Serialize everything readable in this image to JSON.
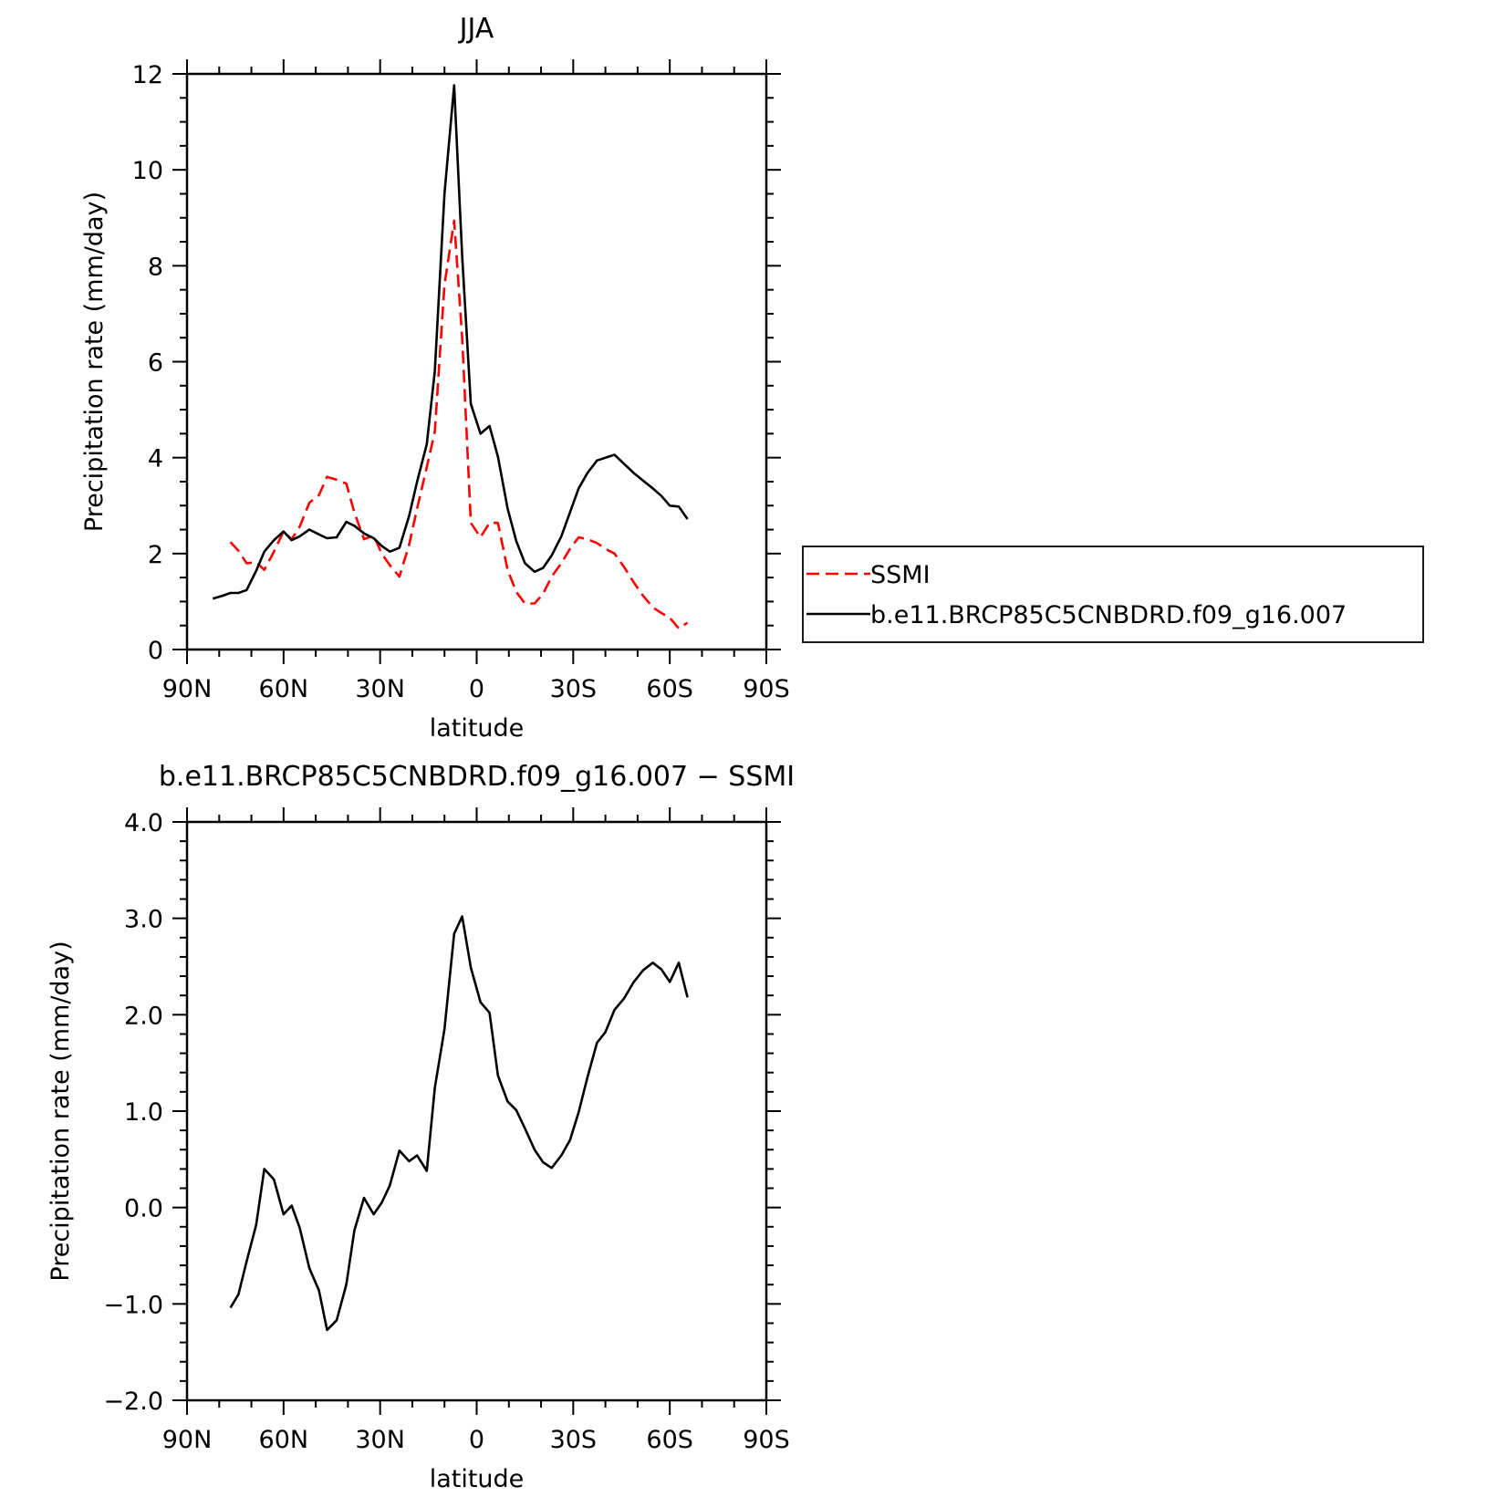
{
  "chart_data": [
    {
      "type": "line",
      "title": "JJA",
      "xlabel": "latitude",
      "ylabel": "Precipitation rate (mm/day)",
      "xlim": [
        90,
        -90
      ],
      "ylim": [
        0,
        12
      ],
      "xticks": [
        90,
        60,
        30,
        0,
        -30,
        -60,
        -90
      ],
      "xtick_labels": [
        "90N",
        "60N",
        "30N",
        "0",
        "30S",
        "60S",
        "90S"
      ],
      "yticks": [
        0,
        2,
        4,
        6,
        8,
        10,
        12
      ],
      "ytick_labels": [
        "0",
        "2",
        "4",
        "6",
        "8",
        "10",
        "12"
      ],
      "grid": false,
      "legend_placement": "right, outside",
      "series": [
        {
          "name": "SSMI",
          "color": "#ff0000",
          "style": "dashed",
          "x": [
            76.5,
            74,
            71.5,
            68.5,
            66,
            63,
            60,
            57.5,
            55,
            52,
            49,
            46.5,
            43.5,
            40.5,
            38,
            35,
            32,
            29.5,
            27,
            24,
            21,
            18.5,
            15.5,
            13,
            10,
            7,
            4.5,
            1.8,
            -1.2,
            -4,
            -6.6,
            -9.6,
            -12.3,
            -15,
            -18,
            -20.6,
            -23.3,
            -26.3,
            -29,
            -31.7,
            -34.4,
            -37.4,
            -40,
            -42.8,
            -45.8,
            -48.8,
            -51.7,
            -54.7,
            -57.4,
            -60,
            -62.8,
            -65.5
          ],
          "y": [
            2.24,
            2.06,
            1.8,
            1.82,
            1.66,
            2.04,
            2.46,
            2.3,
            2.56,
            3.06,
            3.22,
            3.6,
            3.54,
            3.46,
            2.86,
            2.3,
            2.38,
            2.0,
            1.76,
            1.52,
            2.18,
            2.94,
            3.8,
            4.54,
            7.6,
            8.94,
            6.5,
            2.64,
            2.34,
            2.64,
            2.64,
            1.66,
            1.2,
            0.96,
            0.96,
            1.16,
            1.52,
            1.8,
            2.1,
            2.34,
            2.3,
            2.22,
            2.1,
            2.0,
            1.72,
            1.4,
            1.12,
            0.88,
            0.76,
            0.66,
            0.44,
            0.56
          ]
        },
        {
          "name": "b.e11.BRCP85C5CNBDRD.f09_g16.007",
          "color": "#000000",
          "style": "solid",
          "x": [
            82,
            79,
            76.5,
            74,
            71.5,
            68.5,
            66,
            63,
            60,
            57.5,
            55,
            52,
            49,
            46.5,
            43.5,
            40.5,
            38,
            35,
            32,
            29.5,
            27,
            24,
            21,
            18.5,
            15.5,
            13,
            10,
            7,
            4.5,
            1.8,
            -1.2,
            -4,
            -6.6,
            -9.6,
            -12.3,
            -15,
            -18,
            -20.6,
            -23.3,
            -26.3,
            -29,
            -31.7,
            -34.4,
            -37.4,
            -42.8,
            -48.8,
            -51.7,
            -54.7,
            -57.4,
            -60,
            -62.8,
            -65.5
          ],
          "y": [
            1.06,
            1.12,
            1.18,
            1.18,
            1.24,
            1.64,
            2.04,
            2.28,
            2.46,
            2.28,
            2.36,
            2.5,
            2.4,
            2.32,
            2.34,
            2.66,
            2.58,
            2.42,
            2.32,
            2.16,
            2.04,
            2.12,
            2.78,
            3.5,
            4.28,
            5.8,
            9.5,
            11.76,
            8.2,
            5.12,
            4.5,
            4.66,
            4.02,
            2.94,
            2.26,
            1.8,
            1.62,
            1.7,
            1.96,
            2.36,
            2.86,
            3.36,
            3.68,
            3.94,
            4.06,
            3.68,
            3.52,
            3.36,
            3.2,
            3.0,
            2.98,
            2.72
          ]
        }
      ]
    },
    {
      "type": "line",
      "title": "b.e11.BRCP85C5CNBDRD.f09_g16.007 - SSMI",
      "xlabel": "latitude",
      "ylabel": "Precipitation rate (mm/day)",
      "xlim": [
        90,
        -90
      ],
      "ylim": [
        -2.0,
        4.0
      ],
      "xticks": [
        90,
        60,
        30,
        0,
        -30,
        -60,
        -90
      ],
      "xtick_labels": [
        "90N",
        "60N",
        "30N",
        "0",
        "30S",
        "60S",
        "90S"
      ],
      "yticks": [
        -2,
        -1,
        0,
        1,
        2,
        3,
        4
      ],
      "ytick_labels": [
        "-2.0",
        "-1.0",
        "0.0",
        "1.0",
        "2.0",
        "3.0",
        "4.0"
      ],
      "grid": false,
      "series": [
        {
          "color": "#000000",
          "style": "solid",
          "x": [
            76.5,
            74,
            71.5,
            68.5,
            66,
            63,
            60,
            57.5,
            55,
            52,
            49,
            46.5,
            43.5,
            40.5,
            38,
            35,
            32,
            29.5,
            27,
            24,
            21,
            18.5,
            15.5,
            13,
            10,
            7,
            4.5,
            1.8,
            -1.2,
            -4,
            -6.6,
            -9.6,
            -12.3,
            -15,
            -18,
            -20.6,
            -23.3,
            -26.3,
            -29,
            -31.7,
            -34.4,
            -37.4,
            -40,
            -42.8,
            -45.8,
            -48.8,
            -51.7,
            -54.7,
            -57.4,
            -60,
            -62.8,
            -65.5
          ],
          "y": [
            -1.04,
            -0.9,
            -0.56,
            -0.18,
            0.4,
            0.29,
            -0.07,
            0.02,
            -0.21,
            -0.63,
            -0.86,
            -1.27,
            -1.17,
            -0.8,
            -0.24,
            0.1,
            -0.07,
            0.05,
            0.23,
            0.59,
            0.48,
            0.54,
            0.38,
            1.24,
            1.85,
            2.84,
            3.02,
            2.49,
            2.13,
            2.02,
            1.37,
            1.1,
            1.01,
            0.82,
            0.6,
            0.47,
            0.41,
            0.54,
            0.7,
            0.99,
            1.35,
            1.71,
            1.82,
            2.05,
            2.17,
            2.34,
            2.46,
            2.54,
            2.47,
            2.34,
            2.54,
            2.18
          ]
        }
      ]
    }
  ]
}
